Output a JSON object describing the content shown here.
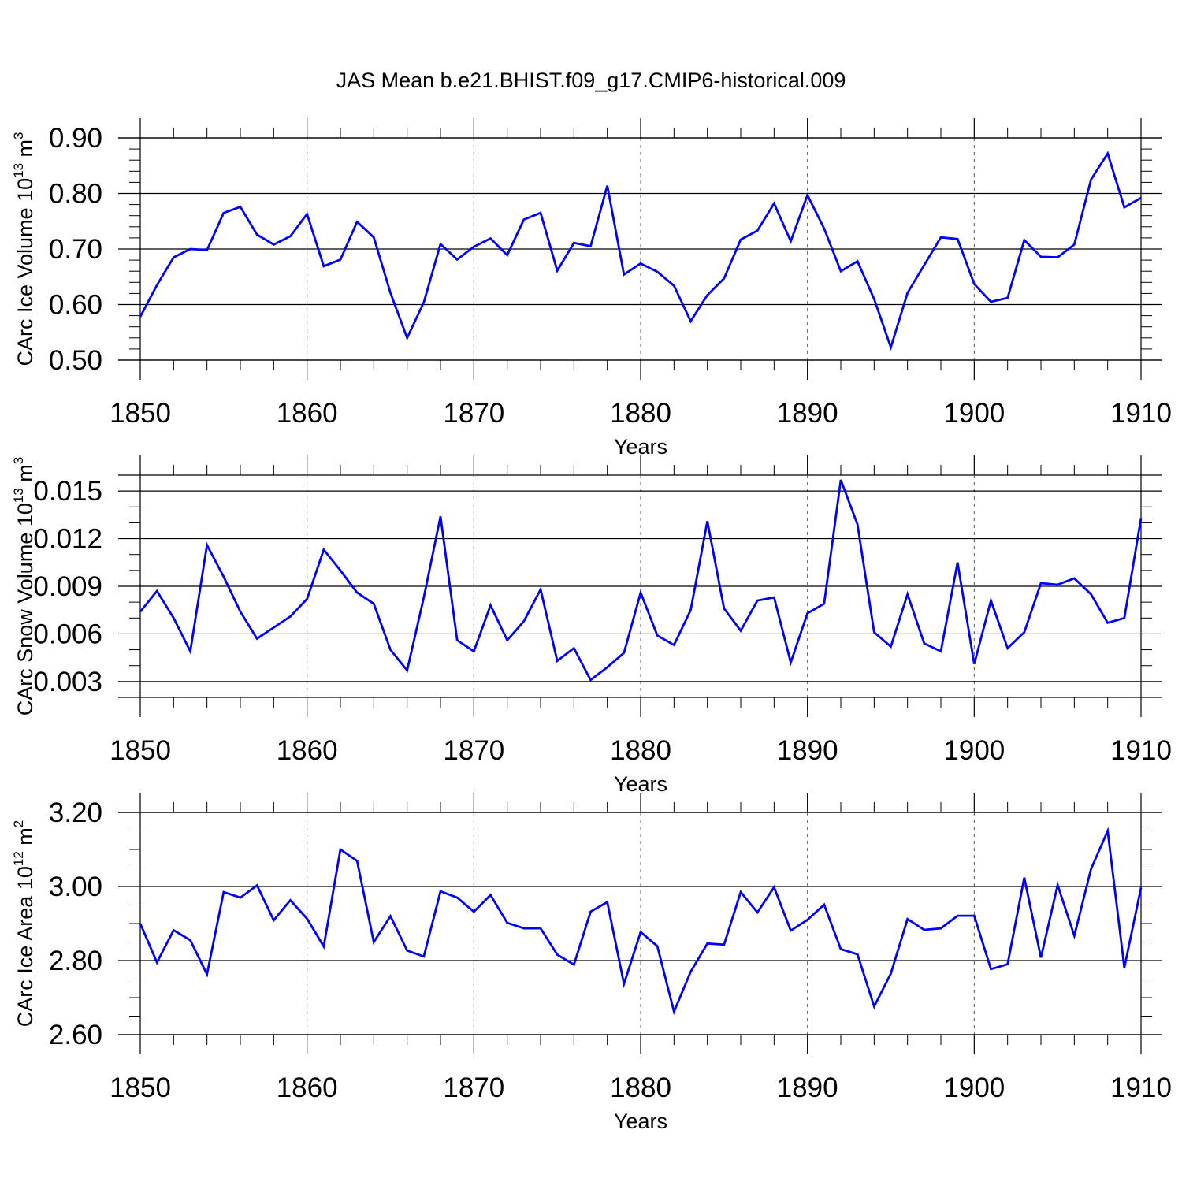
{
  "title": "JAS Mean b.e21.BHIST.f09_g17.CMIP6-historical.009",
  "colors": {
    "line": "#0000ff",
    "axis": "#000000",
    "grid": "#555555",
    "background": "#ffffff"
  },
  "chart_data": [
    {
      "type": "line",
      "title": "JAS Mean b.e21.BHIST.f09_g17.CMIP6-historical.009",
      "xlabel": "Years",
      "ylabel": {
        "main": "CArc Ice Volume 10",
        "exponent": "13",
        "unit": " m",
        "unit_exponent": "3"
      },
      "xlim": [
        1850,
        1910
      ],
      "ylim": [
        0.5,
        0.9
      ],
      "x_ticks": [
        1850,
        1860,
        1870,
        1880,
        1890,
        1900,
        1910
      ],
      "x_tick_labels": [
        "1850",
        "1860",
        "1870",
        "1880",
        "1890",
        "1900",
        "1910"
      ],
      "y_ticks": [
        0.5,
        0.6,
        0.7,
        0.8,
        0.9
      ],
      "y_tick_labels": [
        "0.50",
        "0.60",
        "0.70",
        "0.80",
        "0.90"
      ],
      "y_minor_step": 0.02,
      "x_minor_step": 2,
      "grid": "vertical dashed at major x ticks",
      "x": [
        1850,
        1851,
        1852,
        1853,
        1854,
        1855,
        1856,
        1857,
        1858,
        1859,
        1860,
        1861,
        1862,
        1863,
        1864,
        1865,
        1866,
        1867,
        1868,
        1869,
        1870,
        1871,
        1872,
        1873,
        1874,
        1875,
        1876,
        1877,
        1878,
        1879,
        1880,
        1881,
        1882,
        1883,
        1884,
        1885,
        1886,
        1887,
        1888,
        1889,
        1890,
        1891,
        1892,
        1893,
        1894,
        1895,
        1896,
        1897,
        1898,
        1899,
        1900,
        1901,
        1902,
        1903,
        1904,
        1905,
        1906,
        1907,
        1908,
        1909,
        1910
      ],
      "series": [
        {
          "values": [
            0.578,
            0.635,
            0.685,
            0.7,
            0.698,
            0.765,
            0.776,
            0.726,
            0.708,
            0.723,
            0.763,
            0.669,
            0.681,
            0.749,
            0.721,
            0.621,
            0.54,
            0.604,
            0.709,
            0.681,
            0.704,
            0.719,
            0.689,
            0.753,
            0.765,
            0.661,
            0.711,
            0.705,
            0.814,
            0.654,
            0.674,
            0.659,
            0.634,
            0.57,
            0.617,
            0.647,
            0.717,
            0.733,
            0.782,
            0.714,
            0.797,
            0.737,
            0.66,
            0.678,
            0.61,
            0.523,
            0.621,
            0.671,
            0.721,
            0.718,
            0.637,
            0.605,
            0.612,
            0.716,
            0.686,
            0.685,
            0.708,
            0.825,
            0.872,
            0.775,
            0.792
          ]
        }
      ]
    },
    {
      "type": "line",
      "xlabel": "Years",
      "ylabel": {
        "main": "CArc Snow Volume 10",
        "exponent": "13",
        "unit": " m",
        "unit_exponent": "3"
      },
      "xlim": [
        1850,
        1910
      ],
      "ylim": [
        0.002,
        0.016
      ],
      "x_ticks": [
        1850,
        1860,
        1870,
        1880,
        1890,
        1900,
        1910
      ],
      "x_tick_labels": [
        "1850",
        "1860",
        "1870",
        "1880",
        "1890",
        "1900",
        "1910"
      ],
      "y_ticks": [
        0.003,
        0.006,
        0.009,
        0.012,
        0.015
      ],
      "y_tick_labels": [
        "0.003",
        "0.006",
        "0.009",
        "0.012",
        "0.015"
      ],
      "y_minor_step": 0.001,
      "x_minor_step": 2,
      "grid": "vertical dashed at major x ticks",
      "x": [
        1850,
        1851,
        1852,
        1853,
        1854,
        1855,
        1856,
        1857,
        1858,
        1859,
        1860,
        1861,
        1862,
        1863,
        1864,
        1865,
        1866,
        1867,
        1868,
        1869,
        1870,
        1871,
        1872,
        1873,
        1874,
        1875,
        1876,
        1877,
        1878,
        1879,
        1880,
        1881,
        1882,
        1883,
        1884,
        1885,
        1886,
        1887,
        1888,
        1889,
        1890,
        1891,
        1892,
        1893,
        1894,
        1895,
        1896,
        1897,
        1898,
        1899,
        1900,
        1901,
        1902,
        1903,
        1904,
        1905,
        1906,
        1907,
        1908,
        1909,
        1910
      ],
      "series": [
        {
          "values": [
            0.0074,
            0.0087,
            0.007,
            0.0049,
            0.0116,
            0.0096,
            0.0074,
            0.0057,
            0.0064,
            0.0071,
            0.0082,
            0.0113,
            0.01,
            0.0086,
            0.0079,
            0.005,
            0.0037,
            0.0083,
            0.0134,
            0.0056,
            0.0049,
            0.0078,
            0.0056,
            0.0068,
            0.0088,
            0.0043,
            0.0051,
            0.0031,
            0.0039,
            0.0048,
            0.0086,
            0.0059,
            0.0053,
            0.0075,
            0.0131,
            0.0076,
            0.0062,
            0.0081,
            0.0083,
            0.0042,
            0.0073,
            0.0079,
            0.0157,
            0.0129,
            0.0061,
            0.0052,
            0.0085,
            0.0054,
            0.0049,
            0.0105,
            0.0041,
            0.0081,
            0.0051,
            0.0061,
            0.0092,
            0.0091,
            0.0095,
            0.0085,
            0.0067,
            0.007,
            0.0133
          ]
        }
      ]
    },
    {
      "type": "line",
      "xlabel": "Years",
      "ylabel": {
        "main": "CArc Ice Area 10",
        "exponent": "12",
        "unit": " m",
        "unit_exponent": "2"
      },
      "xlim": [
        1850,
        1910
      ],
      "ylim": [
        2.6,
        3.2
      ],
      "x_ticks": [
        1850,
        1860,
        1870,
        1880,
        1890,
        1900,
        1910
      ],
      "x_tick_labels": [
        "1850",
        "1860",
        "1870",
        "1880",
        "1890",
        "1900",
        "1910"
      ],
      "y_ticks": [
        2.6,
        2.8,
        3.0,
        3.2
      ],
      "y_tick_labels": [
        "2.60",
        "2.80",
        "3.00",
        "3.20"
      ],
      "y_minor_step": 0.05,
      "x_minor_step": 2,
      "grid": "vertical dashed at major x ticks",
      "x": [
        1850,
        1851,
        1852,
        1853,
        1854,
        1855,
        1856,
        1857,
        1858,
        1859,
        1860,
        1861,
        1862,
        1863,
        1864,
        1865,
        1866,
        1867,
        1868,
        1869,
        1870,
        1871,
        1872,
        1873,
        1874,
        1875,
        1876,
        1877,
        1878,
        1879,
        1880,
        1881,
        1882,
        1883,
        1884,
        1885,
        1886,
        1887,
        1888,
        1889,
        1890,
        1891,
        1892,
        1893,
        1894,
        1895,
        1896,
        1897,
        1898,
        1899,
        1900,
        1901,
        1902,
        1903,
        1904,
        1905,
        1906,
        1907,
        1908,
        1909,
        1910
      ],
      "series": [
        {
          "values": [
            2.9,
            2.795,
            2.882,
            2.855,
            2.763,
            2.985,
            2.97,
            3.003,
            2.909,
            2.963,
            2.913,
            2.838,
            3.1,
            3.069,
            2.85,
            2.92,
            2.827,
            2.811,
            2.987,
            2.97,
            2.932,
            2.977,
            2.902,
            2.887,
            2.887,
            2.816,
            2.789,
            2.932,
            2.958,
            2.737,
            2.877,
            2.839,
            2.662,
            2.77,
            2.846,
            2.843,
            2.985,
            2.93,
            2.998,
            2.881,
            2.91,
            2.951,
            2.831,
            2.817,
            2.676,
            2.765,
            2.912,
            2.883,
            2.887,
            2.921,
            2.921,
            2.777,
            2.79,
            3.024,
            2.808,
            3.004,
            2.867,
            3.047,
            3.15,
            2.781,
            2.997
          ]
        }
      ]
    }
  ]
}
